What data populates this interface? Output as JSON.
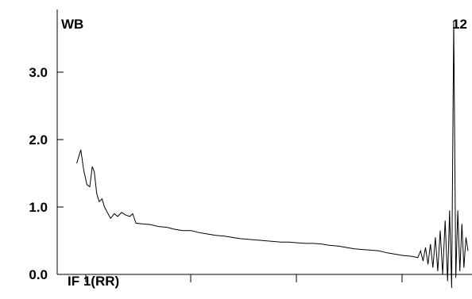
{
  "chart_data": {
    "type": "line",
    "labels": {
      "top_left": "WB",
      "top_right": "12",
      "bottom_left": "IF 1(RR)"
    },
    "y_ticks": [
      "0.0",
      "1.0",
      "2.0",
      "3.0"
    ],
    "ylim": [
      -0.15,
      3.9
    ],
    "xlim": [
      0,
      100
    ],
    "grid": false,
    "series": [
      {
        "color": "#000000",
        "points": [
          [
            4.0,
            1.65
          ],
          [
            5.0,
            1.85
          ],
          [
            5.7,
            1.55
          ],
          [
            6.5,
            1.33
          ],
          [
            7.2,
            1.3
          ],
          [
            7.8,
            1.6
          ],
          [
            8.3,
            1.52
          ],
          [
            8.9,
            1.2
          ],
          [
            9.5,
            1.08
          ],
          [
            10.2,
            1.12
          ],
          [
            10.8,
            1.0
          ],
          [
            11.5,
            0.92
          ],
          [
            12.3,
            0.83
          ],
          [
            13.2,
            0.9
          ],
          [
            14.0,
            0.86
          ],
          [
            15.0,
            0.92
          ],
          [
            16.0,
            0.88
          ],
          [
            17.0,
            0.86
          ],
          [
            17.7,
            0.9
          ],
          [
            18.5,
            0.76
          ],
          [
            20,
            0.75
          ],
          [
            22,
            0.74
          ],
          [
            24,
            0.71
          ],
          [
            26,
            0.7
          ],
          [
            28,
            0.67
          ],
          [
            30,
            0.65
          ],
          [
            32,
            0.65
          ],
          [
            34,
            0.62
          ],
          [
            36,
            0.6
          ],
          [
            38,
            0.58
          ],
          [
            40,
            0.57
          ],
          [
            42,
            0.55
          ],
          [
            44,
            0.53
          ],
          [
            46,
            0.52
          ],
          [
            48,
            0.51
          ],
          [
            50,
            0.5
          ],
          [
            52,
            0.49
          ],
          [
            54,
            0.48
          ],
          [
            56,
            0.48
          ],
          [
            58,
            0.47
          ],
          [
            60,
            0.46
          ],
          [
            62,
            0.46
          ],
          [
            64,
            0.45
          ],
          [
            66,
            0.43
          ],
          [
            68,
            0.42
          ],
          [
            70,
            0.4
          ],
          [
            72,
            0.38
          ],
          [
            74,
            0.37
          ],
          [
            76,
            0.36
          ],
          [
            78,
            0.35
          ],
          [
            80,
            0.32
          ],
          [
            82,
            0.3
          ],
          [
            84,
            0.28
          ],
          [
            86,
            0.27
          ],
          [
            87.5,
            0.25
          ],
          [
            88.2,
            0.35
          ],
          [
            88.8,
            0.2
          ],
          [
            89.4,
            0.4
          ],
          [
            90.0,
            0.15
          ],
          [
            90.6,
            0.45
          ],
          [
            91.2,
            0.1
          ],
          [
            91.8,
            0.55
          ],
          [
            92.4,
            0.05
          ],
          [
            93.0,
            0.65
          ],
          [
            93.6,
            0.0
          ],
          [
            94.2,
            0.8
          ],
          [
            94.8,
            -0.1
          ],
          [
            95.3,
            0.95
          ],
          [
            95.8,
            -0.2
          ],
          [
            96.3,
            3.75
          ],
          [
            96.8,
            -0.05
          ],
          [
            97.3,
            0.95
          ],
          [
            97.8,
            0.05
          ],
          [
            98.3,
            0.75
          ],
          [
            98.8,
            0.1
          ],
          [
            99.3,
            0.55
          ],
          [
            99.8,
            0.35
          ]
        ]
      }
    ]
  }
}
